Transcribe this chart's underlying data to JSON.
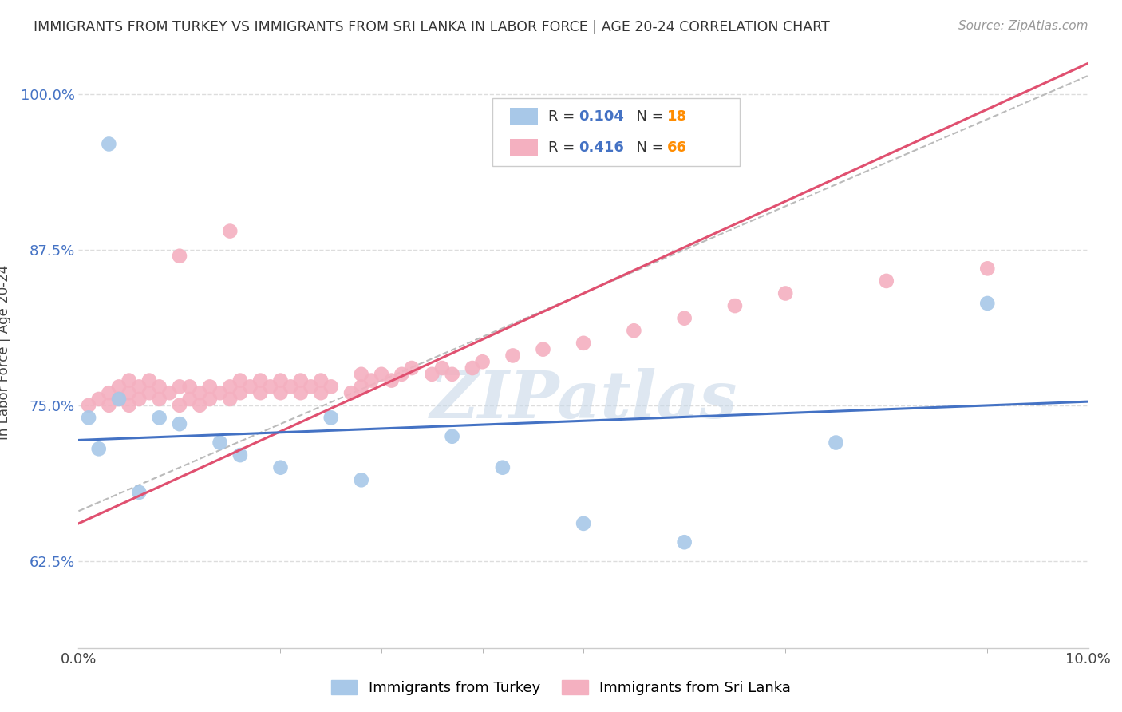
{
  "title": "IMMIGRANTS FROM TURKEY VS IMMIGRANTS FROM SRI LANKA IN LABOR FORCE | AGE 20-24 CORRELATION CHART",
  "source": "Source: ZipAtlas.com",
  "ylabel": "In Labor Force | Age 20-24",
  "xlim": [
    0.0,
    0.1
  ],
  "ylim": [
    0.555,
    1.03
  ],
  "xticks": [
    0.0,
    0.1
  ],
  "xticklabels": [
    "0.0%",
    "10.0%"
  ],
  "yticks": [
    0.625,
    0.75,
    0.875,
    1.0
  ],
  "yticklabels": [
    "62.5%",
    "75.0%",
    "87.5%",
    "100.0%"
  ],
  "turkey_R": 0.104,
  "turkey_N": 18,
  "srilanka_R": 0.416,
  "srilanka_N": 66,
  "turkey_color": "#A8C8E8",
  "turkey_edge_color": "#A8C8E8",
  "srilanka_color": "#F4B0C0",
  "srilanka_edge_color": "#F4B0C0",
  "turkey_line_color": "#4472C4",
  "srilanka_line_color": "#E05070",
  "ref_line_color": "#BBBBBB",
  "background_color": "#FFFFFF",
  "grid_color": "#DDDDDD",
  "watermark": "ZIPatlas",
  "legend_R_color": "#4472C4",
  "legend_N_color": "#FF8C00",
  "turkey_line_x": [
    0.0,
    0.1
  ],
  "turkey_line_y": [
    0.722,
    0.753
  ],
  "srilanka_line_x": [
    0.0,
    0.1
  ],
  "srilanka_line_y": [
    0.655,
    1.025
  ],
  "ref_line_x": [
    0.0,
    0.1
  ],
  "ref_line_y": [
    0.665,
    1.015
  ],
  "turkey_x": [
    0.001,
    0.002,
    0.003,
    0.004,
    0.006,
    0.008,
    0.01,
    0.014,
    0.016,
    0.02,
    0.025,
    0.028,
    0.037,
    0.042,
    0.05,
    0.06,
    0.075,
    0.09
  ],
  "turkey_y": [
    0.74,
    0.715,
    0.96,
    0.755,
    0.68,
    0.74,
    0.735,
    0.72,
    0.71,
    0.7,
    0.74,
    0.69,
    0.725,
    0.7,
    0.655,
    0.64,
    0.72,
    0.832
  ],
  "srilanka_x": [
    0.001,
    0.002,
    0.003,
    0.003,
    0.004,
    0.004,
    0.005,
    0.005,
    0.005,
    0.006,
    0.006,
    0.007,
    0.007,
    0.008,
    0.008,
    0.009,
    0.01,
    0.01,
    0.011,
    0.011,
    0.012,
    0.012,
    0.013,
    0.013,
    0.014,
    0.015,
    0.015,
    0.016,
    0.016,
    0.017,
    0.018,
    0.018,
    0.019,
    0.02,
    0.02,
    0.021,
    0.022,
    0.022,
    0.023,
    0.024,
    0.024,
    0.025,
    0.027,
    0.028,
    0.028,
    0.029,
    0.03,
    0.031,
    0.032,
    0.033,
    0.035,
    0.036,
    0.037,
    0.039,
    0.04,
    0.043,
    0.046,
    0.05,
    0.055,
    0.06,
    0.065,
    0.07,
    0.08,
    0.09,
    0.01,
    0.015
  ],
  "srilanka_y": [
    0.75,
    0.755,
    0.75,
    0.76,
    0.755,
    0.765,
    0.75,
    0.76,
    0.77,
    0.755,
    0.765,
    0.76,
    0.77,
    0.755,
    0.765,
    0.76,
    0.75,
    0.765,
    0.755,
    0.765,
    0.75,
    0.76,
    0.755,
    0.765,
    0.76,
    0.755,
    0.765,
    0.76,
    0.77,
    0.765,
    0.76,
    0.77,
    0.765,
    0.76,
    0.77,
    0.765,
    0.76,
    0.77,
    0.765,
    0.76,
    0.77,
    0.765,
    0.76,
    0.765,
    0.775,
    0.77,
    0.775,
    0.77,
    0.775,
    0.78,
    0.775,
    0.78,
    0.775,
    0.78,
    0.785,
    0.79,
    0.795,
    0.8,
    0.81,
    0.82,
    0.83,
    0.84,
    0.85,
    0.86,
    0.87,
    0.89
  ]
}
